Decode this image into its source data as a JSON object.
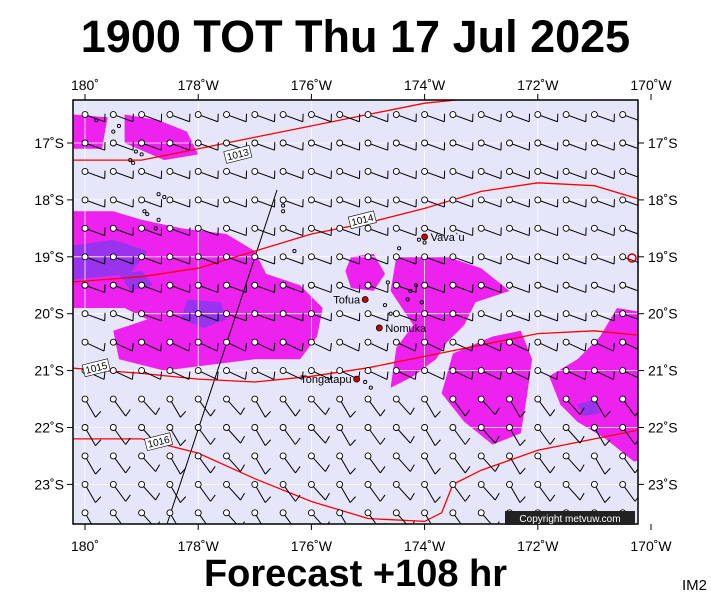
{
  "title": "1900 TOT Thu 17 Jul 2025",
  "forecast": "Forecast +108 hr",
  "image_code": "IM2",
  "copyright": "Copyright metvuw.com",
  "lon_ticks": [
    {
      "lon": -180,
      "label": "180˚"
    },
    {
      "lon": -178,
      "label": "178˚W"
    },
    {
      "lon": -176,
      "label": "176˚W"
    },
    {
      "lon": -174,
      "label": "174˚W"
    },
    {
      "lon": -172,
      "label": "172˚W"
    },
    {
      "lon": -170,
      "label": "170˚W"
    }
  ],
  "lat_ticks": [
    {
      "lat": -17,
      "label": "17˚S"
    },
    {
      "lat": -18,
      "label": "18˚S"
    },
    {
      "lat": -19,
      "label": "19˚S"
    },
    {
      "lat": -20,
      "label": "20˚S"
    },
    {
      "lat": -21,
      "label": "21˚S"
    },
    {
      "lat": -22,
      "label": "22˚S"
    },
    {
      "lat": -23,
      "label": "23˚S"
    }
  ],
  "places": [
    {
      "name": "Vava`u",
      "lon": -174.0,
      "lat": -18.65
    },
    {
      "name": "Tofua",
      "lon": -175.05,
      "lat": -19.75
    },
    {
      "name": "Nomuka",
      "lon": -174.8,
      "lat": -20.25
    },
    {
      "name": "Tongatapu",
      "lon": -175.2,
      "lat": -21.15
    }
  ],
  "isobars": [
    {
      "value": "1013",
      "label_lon": -177.3,
      "label_lat": -17.2,
      "points": [
        [
          -180.3,
          -17.3
        ],
        [
          -179,
          -17.3
        ],
        [
          -178,
          -17.1
        ],
        [
          -177,
          -16.9
        ],
        [
          -176,
          -16.7
        ],
        [
          -175,
          -16.5
        ],
        [
          -174,
          -16.3
        ],
        [
          -173,
          -16.2
        ],
        [
          -172,
          -16.15
        ],
        [
          -171,
          -16.05
        ],
        [
          -170,
          -16.0
        ],
        [
          -169.8,
          -16.0
        ]
      ]
    },
    {
      "value": "1014",
      "label_lon": -175.1,
      "label_lat": -18.35,
      "points": [
        [
          -180.3,
          -19.45
        ],
        [
          -179,
          -19.35
        ],
        [
          -178,
          -19.2
        ],
        [
          -177,
          -18.9
        ],
        [
          -176,
          -18.6
        ],
        [
          -175,
          -18.4
        ],
        [
          -174,
          -18.15
        ],
        [
          -173,
          -17.85
        ],
        [
          -172,
          -17.7
        ],
        [
          -171,
          -17.75
        ],
        [
          -170,
          -18.05
        ],
        [
          -169.8,
          -18.1
        ]
      ]
    },
    {
      "value": "1015",
      "label_lon": -179.8,
      "label_lat": -20.95,
      "points": [
        [
          -180.3,
          -20.95
        ],
        [
          -179,
          -21.05
        ],
        [
          -178,
          -21.15
        ],
        [
          -177,
          -21.2
        ],
        [
          -176,
          -21.1
        ],
        [
          -175,
          -20.95
        ],
        [
          -174,
          -20.75
        ],
        [
          -173,
          -20.55
        ],
        [
          -172,
          -20.35
        ],
        [
          -171,
          -20.3
        ],
        [
          -170,
          -20.4
        ],
        [
          -169.8,
          -20.45
        ]
      ]
    },
    {
      "value": "1016",
      "label_lon": -178.7,
      "label_lat": -22.25,
      "points": [
        [
          -180.3,
          -22.2
        ],
        [
          -179,
          -22.2
        ],
        [
          -178,
          -22.45
        ],
        [
          -177,
          -22.9
        ],
        [
          -176,
          -23.3
        ],
        [
          -175,
          -23.6
        ],
        [
          -174,
          -23.65
        ],
        [
          -173.7,
          -23.5
        ],
        [
          -173.5,
          -23.0
        ],
        [
          -173,
          -22.75
        ],
        [
          -172,
          -22.4
        ],
        [
          -171,
          -22.2
        ],
        [
          -170,
          -22.0
        ],
        [
          -169.8,
          -22.0
        ]
      ]
    }
  ],
  "precip_regions": [
    {
      "level": "light",
      "points": [
        [
          -180.2,
          -18.2
        ],
        [
          -179.5,
          -18.2
        ],
        [
          -179,
          -18.35
        ],
        [
          -178.3,
          -18.5
        ],
        [
          -177.5,
          -18.6
        ],
        [
          -177,
          -18.9
        ],
        [
          -176.8,
          -19.3
        ],
        [
          -176.2,
          -19.5
        ],
        [
          -175.8,
          -19.9
        ],
        [
          -175.9,
          -20.4
        ],
        [
          -176.2,
          -20.8
        ],
        [
          -177,
          -20.8
        ],
        [
          -177.8,
          -20.9
        ],
        [
          -178.6,
          -21.0
        ],
        [
          -179.4,
          -20.8
        ],
        [
          -179.5,
          -20.3
        ],
        [
          -178.9,
          -20.1
        ],
        [
          -179.3,
          -19.9
        ],
        [
          -180.2,
          -19.9
        ]
      ]
    },
    {
      "level": "light",
      "points": [
        [
          -179.3,
          -16.5
        ],
        [
          -178.7,
          -16.6
        ],
        [
          -178.2,
          -16.8
        ],
        [
          -178.0,
          -17.2
        ],
        [
          -178.6,
          -17.3
        ],
        [
          -179.3,
          -17.0
        ]
      ]
    },
    {
      "level": "light",
      "points": [
        [
          -180.2,
          -16.5
        ],
        [
          -179.6,
          -16.55
        ],
        [
          -179.7,
          -17.1
        ],
        [
          -180.2,
          -17.1
        ]
      ]
    },
    {
      "level": "light",
      "points": [
        [
          -175.3,
          -19.0
        ],
        [
          -174.9,
          -18.95
        ],
        [
          -174.7,
          -19.3
        ],
        [
          -174.9,
          -19.6
        ],
        [
          -175.3,
          -19.55
        ],
        [
          -175.4,
          -19.25
        ]
      ]
    },
    {
      "level": "light",
      "points": [
        [
          -174.5,
          -19.0
        ],
        [
          -173.6,
          -19.0
        ],
        [
          -173.0,
          -19.2
        ],
        [
          -172.5,
          -19.6
        ],
        [
          -173.1,
          -19.8
        ],
        [
          -173.3,
          -20.2
        ],
        [
          -173.6,
          -20.5
        ],
        [
          -173.8,
          -20.8
        ],
        [
          -174.2,
          -21.1
        ],
        [
          -174.6,
          -21.3
        ],
        [
          -174.5,
          -20.6
        ],
        [
          -174.2,
          -20.2
        ],
        [
          -174.6,
          -19.6
        ]
      ]
    },
    {
      "level": "light",
      "points": [
        [
          -173.5,
          -20.7
        ],
        [
          -172.8,
          -20.4
        ],
        [
          -172.3,
          -20.3
        ],
        [
          -172.1,
          -20.8
        ],
        [
          -172.2,
          -21.5
        ],
        [
          -172.3,
          -22.1
        ],
        [
          -172.8,
          -22.3
        ],
        [
          -173.3,
          -21.9
        ],
        [
          -173.7,
          -21.4
        ]
      ]
    },
    {
      "level": "light",
      "points": [
        [
          -170.6,
          -19.9
        ],
        [
          -170.0,
          -20.0
        ],
        [
          -169.8,
          -20.4
        ],
        [
          -169.8,
          -22.5
        ],
        [
          -170.3,
          -22.6
        ],
        [
          -170.8,
          -22.2
        ],
        [
          -171.3,
          -21.9
        ],
        [
          -171.6,
          -21.6
        ],
        [
          -171.8,
          -21.1
        ],
        [
          -171.3,
          -20.8
        ],
        [
          -170.9,
          -20.4
        ]
      ]
    },
    {
      "level": "heavy",
      "points": [
        [
          -180.2,
          -18.8
        ],
        [
          -179.5,
          -18.7
        ],
        [
          -178.9,
          -18.9
        ],
        [
          -179.2,
          -19.3
        ],
        [
          -180.2,
          -19.4
        ]
      ]
    },
    {
      "level": "heavy",
      "points": [
        [
          -178.2,
          -19.75
        ],
        [
          -177.6,
          -19.8
        ],
        [
          -177.5,
          -20.1
        ],
        [
          -177.9,
          -20.25
        ],
        [
          -178.3,
          -20.1
        ]
      ]
    },
    {
      "level": "heavy",
      "points": [
        [
          -179.4,
          -19.3
        ],
        [
          -179.0,
          -19.25
        ],
        [
          -178.8,
          -19.5
        ],
        [
          -179.2,
          -19.6
        ]
      ]
    },
    {
      "level": "heavy",
      "points": [
        [
          -171.3,
          -21.6
        ],
        [
          -171.0,
          -21.5
        ],
        [
          -170.9,
          -21.75
        ],
        [
          -171.2,
          -21.8
        ]
      ]
    }
  ],
  "islands": [
    [
      -179.8,
      -16.6
    ],
    [
      -179.4,
      -16.7
    ],
    [
      -179.5,
      -16.8
    ],
    [
      -179.1,
      -17.15
    ],
    [
      -179.0,
      -17.2
    ],
    [
      -179.2,
      -17.3
    ],
    [
      -179.15,
      -17.35
    ],
    [
      -178.7,
      -17.9
    ],
    [
      -178.6,
      -17.95
    ],
    [
      -178.95,
      -18.2
    ],
    [
      -178.9,
      -18.25
    ],
    [
      -178.7,
      -18.35
    ],
    [
      -178.75,
      -18.5
    ],
    [
      -176.5,
      -18.1
    ],
    [
      -176.5,
      -18.2
    ],
    [
      -174.65,
      -19.45
    ],
    [
      -174.25,
      -19.6
    ],
    [
      -174.15,
      -19.5
    ],
    [
      -174.3,
      -19.75
    ],
    [
      -174.05,
      -19.8
    ],
    [
      -174.7,
      -19.85
    ],
    [
      -174.6,
      -20.0
    ],
    [
      -174.45,
      -18.85
    ],
    [
      -174.1,
      -18.7
    ],
    [
      -174.0,
      -18.75
    ],
    [
      -175.05,
      -21.2
    ],
    [
      -174.95,
      -21.3
    ],
    [
      -176.3,
      -18.9
    ]
  ],
  "wind_field": {
    "lon_start": -180,
    "lon_step": 0.5,
    "lat_start": -16.5,
    "lat_step": -0.5,
    "cols": 21,
    "rows": 15
  }
}
